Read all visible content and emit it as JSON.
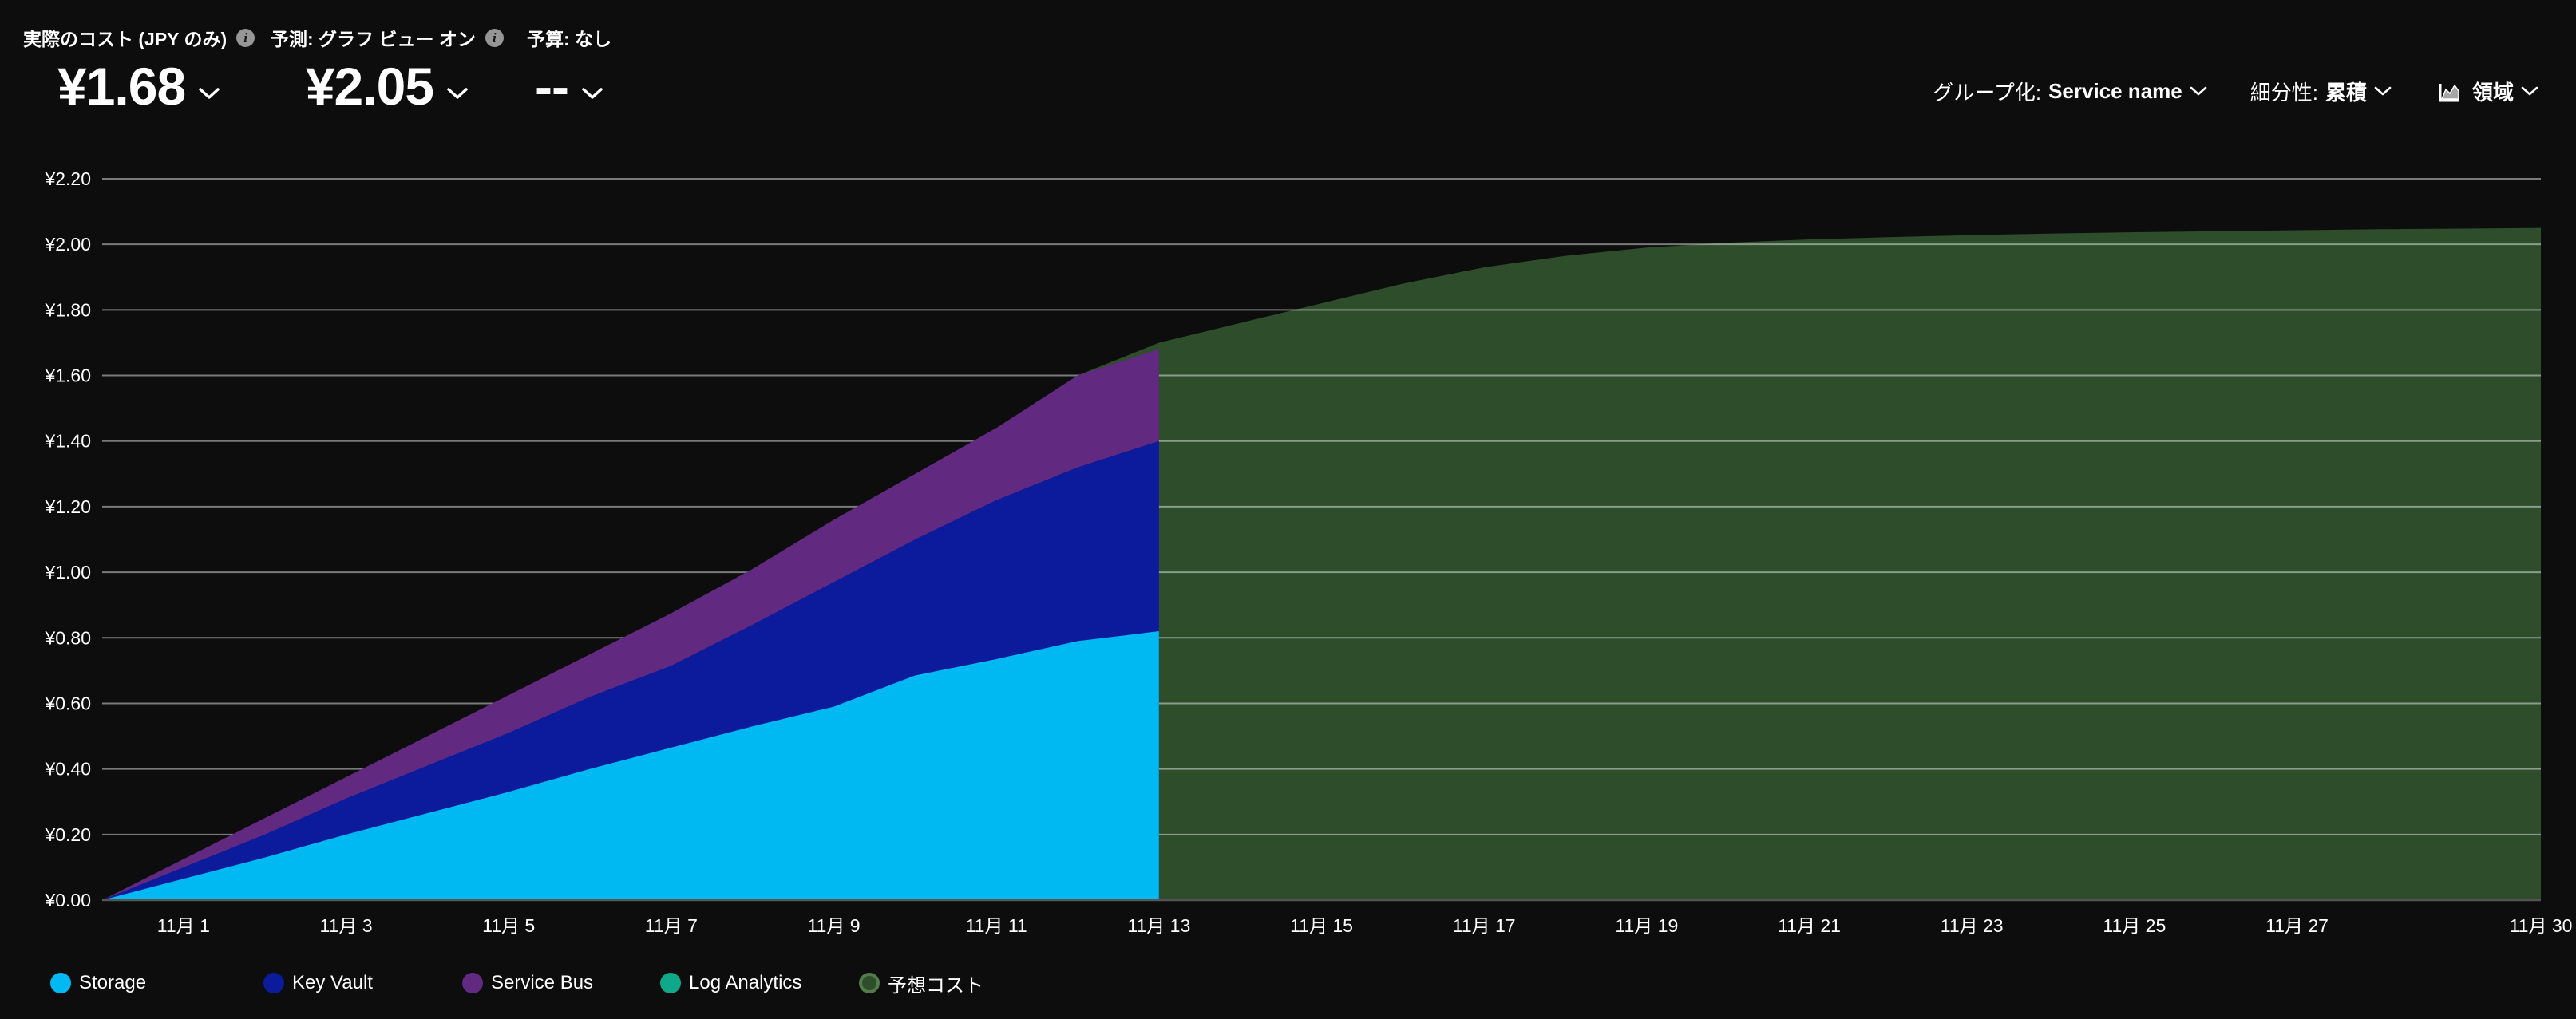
{
  "header": {
    "kpis": [
      {
        "label": "実際のコスト (JPY のみ)",
        "value": "¥1.68",
        "has_info": true
      },
      {
        "label": "予測: グラフ ビュー オン",
        "value": "¥2.05",
        "has_info": true
      },
      {
        "label": "予算: なし",
        "value": "--",
        "has_info": false
      }
    ],
    "controls": {
      "group_by_prefix": "グループ化:",
      "group_by_value": "Service name",
      "granularity_prefix": "細分性:",
      "granularity_value": "累積",
      "chart_type_label": "領域",
      "chart_type_icon": "area-chart-icon"
    }
  },
  "legend": {
    "items": [
      {
        "label": "Storage",
        "color": "#00b9f2"
      },
      {
        "label": "Key Vault",
        "color": "#0b1b9c"
      },
      {
        "label": "Service Bus",
        "color": "#61297f"
      },
      {
        "label": "Log Analytics",
        "color": "#10a88a"
      },
      {
        "label": "予想コスト",
        "color": "#2d4d2b",
        "ring": "#517c4a"
      }
    ]
  },
  "chart_data": {
    "type": "area",
    "stacked": true,
    "title": "",
    "xlabel": "",
    "ylabel": "",
    "grid": true,
    "legend_position": "bottom",
    "currency": "JPY",
    "ylim": [
      0,
      2.2
    ],
    "y_ticks": [
      {
        "value": 0.0,
        "label": "¥0.00"
      },
      {
        "value": 0.2,
        "label": "¥0.20"
      },
      {
        "value": 0.4,
        "label": "¥0.40"
      },
      {
        "value": 0.6,
        "label": "¥0.60"
      },
      {
        "value": 0.8,
        "label": "¥0.80"
      },
      {
        "value": 1.0,
        "label": "¥1.00"
      },
      {
        "value": 1.2,
        "label": "¥1.20"
      },
      {
        "value": 1.4,
        "label": "¥1.40"
      },
      {
        "value": 1.6,
        "label": "¥1.60"
      },
      {
        "value": 1.8,
        "label": "¥1.80"
      },
      {
        "value": 2.0,
        "label": "¥2.00"
      },
      {
        "value": 2.2,
        "label": "¥2.20"
      }
    ],
    "x_domain": {
      "start": "10月31",
      "end": "11月30",
      "days": 30
    },
    "x_ticks": [
      {
        "day": 1,
        "label": "11月 1"
      },
      {
        "day": 3,
        "label": "11月 3"
      },
      {
        "day": 5,
        "label": "11月 5"
      },
      {
        "day": 7,
        "label": "11月 7"
      },
      {
        "day": 9,
        "label": "11月 9"
      },
      {
        "day": 11,
        "label": "11月 11"
      },
      {
        "day": 13,
        "label": "11月 13"
      },
      {
        "day": 15,
        "label": "11月 15"
      },
      {
        "day": 17,
        "label": "11月 17"
      },
      {
        "day": 19,
        "label": "11月 19"
      },
      {
        "day": 21,
        "label": "11月 21"
      },
      {
        "day": 23,
        "label": "11月 23"
      },
      {
        "day": 25,
        "label": "11月 25"
      },
      {
        "day": 27,
        "label": "11月 27"
      },
      {
        "day": 30,
        "label": "11月 30"
      }
    ],
    "actual": {
      "day_offsets_from_oct31": [
        0,
        1,
        2,
        3,
        4,
        5,
        6,
        7,
        8,
        9,
        10,
        11,
        12,
        13
      ],
      "series_bottom_to_top": [
        {
          "name": "Storage",
          "color": "#00b9f2",
          "cumulative_top": [
            0,
            0.065,
            0.13,
            0.2,
            0.265,
            0.33,
            0.4,
            0.465,
            0.53,
            0.59,
            0.685,
            0.735,
            0.79,
            0.82
          ]
        },
        {
          "name": "Key Vault",
          "color": "#0b1b9c",
          "cumulative_top": [
            0,
            0.1,
            0.2,
            0.31,
            0.41,
            0.51,
            0.62,
            0.715,
            0.84,
            0.97,
            1.1,
            1.22,
            1.32,
            1.4
          ]
        },
        {
          "name": "Service Bus",
          "color": "#61297f",
          "cumulative_top": [
            0,
            0.125,
            0.25,
            0.375,
            0.5,
            0.625,
            0.75,
            0.875,
            1.01,
            1.16,
            1.3,
            1.44,
            1.6,
            1.68
          ]
        }
      ],
      "total_accumulated": 1.68
    },
    "forecast": {
      "name": "予想コスト",
      "color": "#2d4d2b",
      "day_offsets_from_oct31": [
        12,
        13,
        14,
        15,
        16,
        17,
        18,
        19,
        20,
        21,
        22,
        23,
        24,
        25,
        26,
        27,
        28,
        29,
        30
      ],
      "values": [
        1.6,
        1.7,
        1.76,
        1.82,
        1.88,
        1.93,
        1.965,
        1.99,
        2.005,
        2.015,
        2.022,
        2.028,
        2.033,
        2.037,
        2.04,
        2.043,
        2.046,
        2.048,
        2.05
      ],
      "end_value": 2.05
    },
    "colors": {
      "background": "#0d0d0d",
      "text": "#ffffff",
      "gridline": "rgba(255,255,255,0.45)",
      "axis_line": "#555555"
    }
  }
}
